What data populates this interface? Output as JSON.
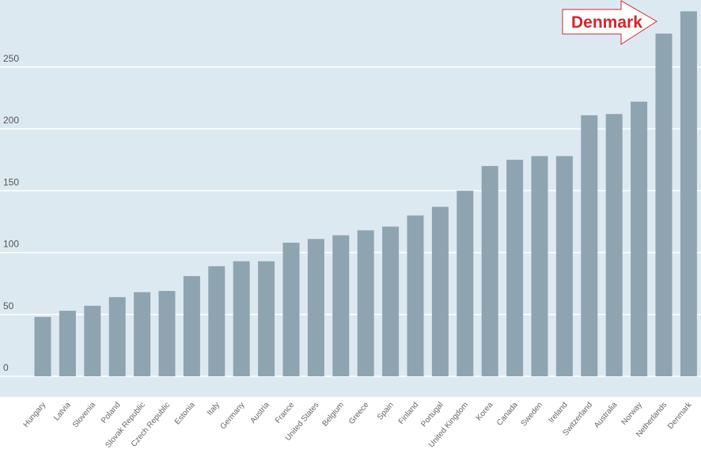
{
  "chart_data": {
    "type": "bar",
    "categories": [
      "Hungary",
      "Latvia",
      "Slovenia",
      "Poland",
      "Slovak Republic",
      "Czech Republic",
      "Estonia",
      "Italy",
      "Germany",
      "Austria",
      "France",
      "United States",
      "Belgium",
      "Greece",
      "Spain",
      "Finland",
      "Portugal",
      "United Kingdom",
      "Korea",
      "Canada",
      "Sweden",
      "Ireland",
      "Switzerland",
      "Australia",
      "Norway",
      "Netherlands",
      "Denmark"
    ],
    "values": [
      48,
      53,
      57,
      64,
      68,
      69,
      81,
      89,
      93,
      93,
      108,
      111,
      114,
      118,
      121,
      130,
      137,
      150,
      170,
      175,
      178,
      178,
      211,
      212,
      222,
      277,
      295
    ],
    "title": "",
    "xlabel": "",
    "ylabel": "",
    "yticks": [
      "0",
      "50",
      "100",
      "150",
      "200",
      "250"
    ],
    "ylim": [
      -5,
      300
    ],
    "grid": true,
    "colors": {
      "plot_background": "#dde9f1",
      "bar": "#8fa4b1",
      "gridline": "#ffffff",
      "callout_text": "#d9232a"
    }
  },
  "callout": {
    "label": "Denmark",
    "target": "Denmark",
    "shape": "right-arrow"
  }
}
